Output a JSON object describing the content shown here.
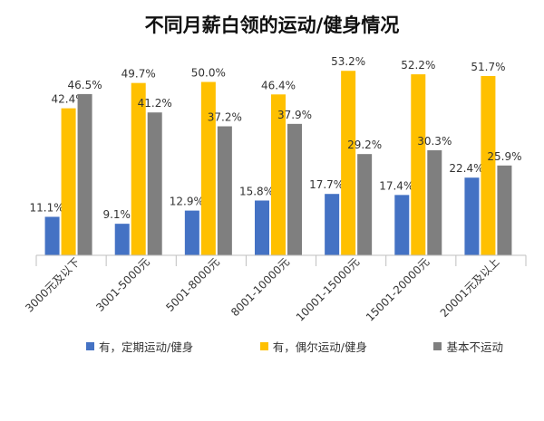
{
  "chart_data": {
    "type": "bar",
    "title": "不同月薪白领的运动/健身情况",
    "categories": [
      "3000元及以下",
      "3001-5000元",
      "5001-8000元",
      "8001-10000元",
      "10001-15000元",
      "15001-20000元",
      "20001元及以上"
    ],
    "series": [
      {
        "name": "有，定期运动/健身",
        "color": "#4472C4",
        "values": [
          11.1,
          9.1,
          12.9,
          15.8,
          17.7,
          17.4,
          22.4
        ],
        "labels": [
          "11.1%",
          "9.1%",
          "12.9%",
          "15.8%",
          "17.7%",
          "17.4%",
          "22.4%"
        ]
      },
      {
        "name": "有，偶尔运动/健身",
        "color": "#FFC000",
        "values": [
          42.4,
          49.7,
          50.0,
          46.4,
          53.2,
          52.2,
          51.7
        ],
        "labels": [
          "42.4%",
          "49.7%",
          "50.0%",
          "46.4%",
          "53.2%",
          "52.2%",
          "51.7%"
        ]
      },
      {
        "name": "基本不运动",
        "color": "#7F7F7F",
        "values": [
          46.5,
          41.2,
          37.2,
          37.9,
          29.2,
          30.3,
          25.9
        ],
        "labels": [
          "46.5%",
          "41.2%",
          "37.2%",
          "37.9%",
          "29.2%",
          "30.3%",
          "25.9%"
        ]
      }
    ],
    "ylim": [
      0,
      60
    ],
    "grid": false,
    "legend_position": "bottom"
  }
}
